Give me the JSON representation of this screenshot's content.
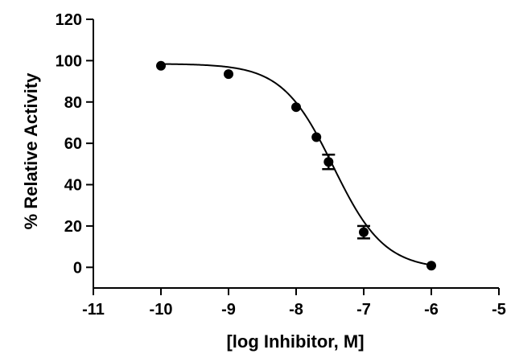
{
  "chart_data": {
    "type": "scatter",
    "title": "",
    "xlabel": "[log Inhibitor, M]",
    "ylabel": "% Relative  Activity",
    "xlim": [
      -11,
      -5
    ],
    "ylim": [
      -10,
      120
    ],
    "x_ticks": [
      -11,
      -10,
      -9,
      -8,
      -7,
      -6,
      -5
    ],
    "y_ticks": [
      0,
      20,
      40,
      60,
      80,
      100,
      120
    ],
    "x_tick_labels": [
      "-11",
      "-10",
      "-9",
      "-8",
      "-7",
      "-6",
      "-5"
    ],
    "y_tick_labels": [
      "0",
      "20",
      "40",
      "60",
      "80",
      "100",
      "120"
    ],
    "grid": false,
    "legend": "none",
    "series": [
      {
        "x": [
          -10,
          -9,
          -8,
          -7.7,
          -7.52,
          -7,
          -6
        ],
        "y": [
          97.5,
          93.5,
          77.5,
          63,
          51,
          17,
          0.8
        ],
        "error": [
          0,
          0,
          0,
          0,
          3.5,
          3,
          0
        ]
      }
    ],
    "fit": {
      "model": "sigmoidal dose-response",
      "top": 98.5,
      "bottom": -1,
      "log_ic50": -7.45,
      "hill_slope": -1.15,
      "x_range": [
        -10,
        -6
      ]
    }
  }
}
